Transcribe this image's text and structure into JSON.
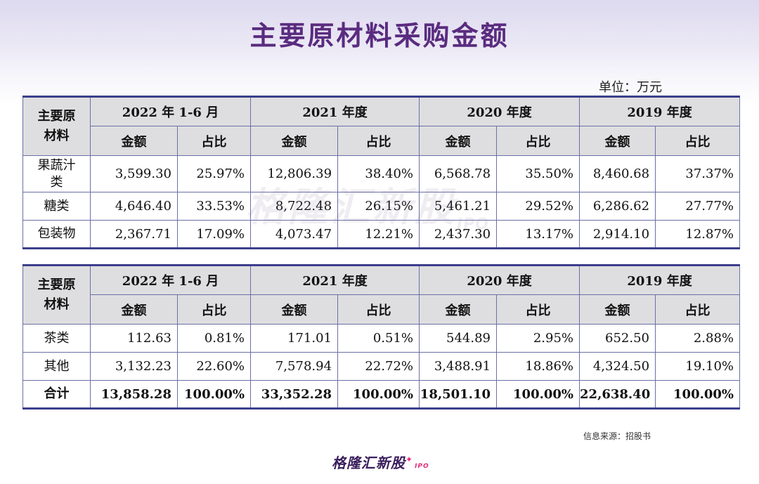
{
  "title": "主要原材料采购金额",
  "unit": "单位：万元",
  "header": {
    "corner": "主要原\n材料",
    "periods": [
      "2022 年 1-6 月",
      "2021 年度",
      "2020 年度",
      "2019 年度"
    ],
    "amount": "金额",
    "ratio": "占比"
  },
  "table1": [
    {
      "name": "果蔬汁\n类",
      "values": [
        "3,599.30",
        "25.97%",
        "12,806.39",
        "38.40%",
        "6,568.78",
        "35.50%",
        "8,460.68",
        "37.37%"
      ]
    },
    {
      "name": "糖类",
      "values": [
        "4,646.40",
        "33.53%",
        "8,722.48",
        "26.15%",
        "5,461.21",
        "29.52%",
        "6,286.62",
        "27.77%"
      ]
    },
    {
      "name": "包装物",
      "values": [
        "2,367.71",
        "17.09%",
        "4,073.47",
        "12.21%",
        "2,437.30",
        "13.17%",
        "2,914.10",
        "12.87%"
      ]
    }
  ],
  "table2": [
    {
      "name": "茶类",
      "values": [
        "112.63",
        "0.81%",
        "171.01",
        "0.51%",
        "544.89",
        "2.95%",
        "652.50",
        "2.88%"
      ]
    },
    {
      "name": "其他",
      "values": [
        "3,132.23",
        "22.60%",
        "7,578.94",
        "22.72%",
        "3,488.91",
        "18.86%",
        "4,324.50",
        "19.10%"
      ]
    },
    {
      "name": "合计",
      "values": [
        "13,858.28",
        "100.00%",
        "33,352.28",
        "100.00%",
        "18,501.10",
        "100.00%",
        "22,638.40",
        "100.00%"
      ]
    }
  ],
  "watermark": {
    "text": "格隆汇新股",
    "suffix": "IPO"
  },
  "source": "信息来源：招股书",
  "logo": {
    "text": "格隆汇新股",
    "suffix": "IPO"
  }
}
